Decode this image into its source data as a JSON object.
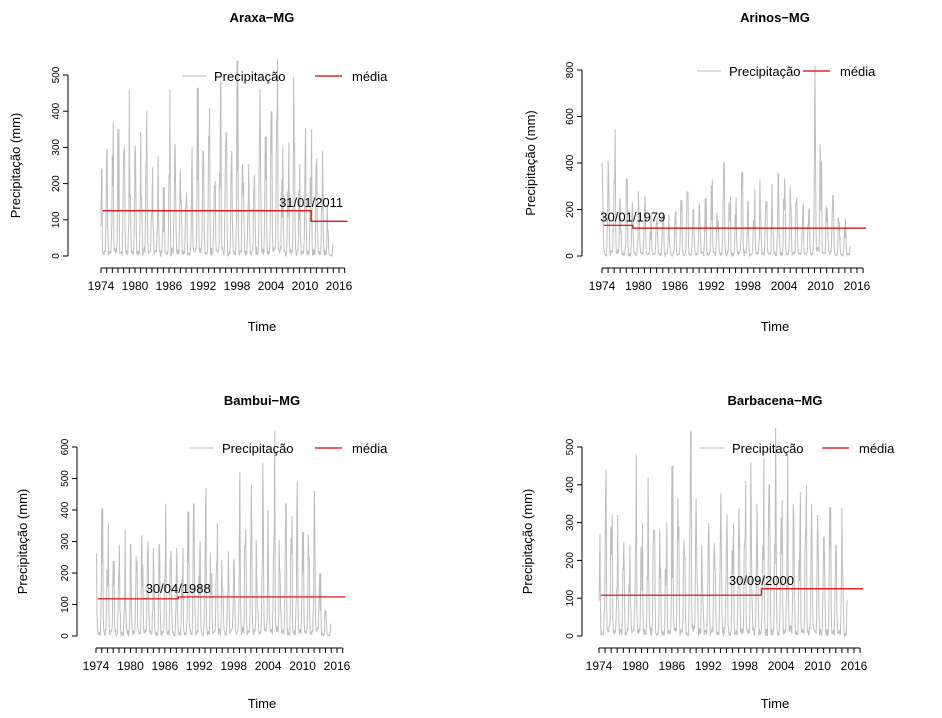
{
  "colors": {
    "series": "#bebebe",
    "mean": "#e00000"
  },
  "chart_data": [
    {
      "type": "line",
      "title": "Araxa−MG",
      "xlabel": "Time",
      "ylabel": "Precipitação (mm)",
      "xlim": [
        1974,
        2017.6
      ],
      "ylim": [
        0,
        500
      ],
      "yticks": [
        0,
        100,
        200,
        300,
        400,
        500
      ],
      "xticks": [
        1974,
        1980,
        1986,
        1992,
        1998,
        2004,
        2010,
        2016
      ],
      "legend": [
        "Precipitação",
        "média"
      ],
      "changepoint": {
        "label": "31/01/2011",
        "x": 2011.08,
        "mean_before": 125,
        "mean_after": 96
      },
      "annual_peaks": [
        240,
        295,
        370,
        350,
        300,
        460,
        305,
        435,
        400,
        280,
        275,
        190,
        460,
        310,
        330,
        200,
        300,
        465,
        290,
        410,
        355,
        480,
        340,
        290,
        540,
        300,
        320,
        520,
        460,
        330,
        400,
        545,
        300,
        315,
        495,
        255,
        370,
        350,
        270,
        290,
        70
      ]
    },
    {
      "type": "line",
      "title": "Arinos−MG",
      "xlabel": "Time",
      "ylabel": "Precipitação (mm)",
      "xlim": [
        1974,
        2017.6
      ],
      "ylim": [
        0,
        800
      ],
      "yticks": [
        0,
        200,
        400,
        600,
        800
      ],
      "xticks": [
        1974,
        1980,
        1986,
        1992,
        1998,
        2004,
        2010,
        2016
      ],
      "legend": [
        "Precipitação",
        "média"
      ],
      "changepoint": {
        "label": "30/01/1979",
        "x": 1979.08,
        "mean_before": 132,
        "mean_after": 120
      },
      "annual_peaks": [
        400,
        410,
        545,
        250,
        330,
        230,
        280,
        260,
        200,
        215,
        225,
        180,
        190,
        240,
        275,
        200,
        310,
        250,
        330,
        235,
        400,
        260,
        330,
        360,
        250,
        290,
        330,
        235,
        310,
        355,
        380,
        340,
        290,
        230,
        320,
        820,
        410,
        370,
        260,
        170,
        160
      ]
    },
    {
      "type": "line",
      "title": "Bambui−MG",
      "xlabel": "Time",
      "ylabel": "Precipitação (mm)",
      "xlim": [
        1974,
        2017.6
      ],
      "ylim": [
        0,
        600
      ],
      "yticks": [
        0,
        100,
        200,
        300,
        400,
        500,
        600
      ],
      "xticks": [
        1974,
        1980,
        1986,
        1992,
        1998,
        2004,
        2010,
        2016
      ],
      "legend": [
        "Precipitação",
        "média"
      ],
      "changepoint": {
        "label": "30/04/1988",
        "x": 1988.33,
        "mean_before": 118,
        "mean_after": 124
      },
      "annual_peaks": [
        260,
        405,
        360,
        390,
        290,
        340,
        290,
        355,
        320,
        300,
        280,
        290,
        420,
        270,
        320,
        280,
        395,
        420,
        300,
        470,
        350,
        555,
        330,
        420,
        310,
        520,
        370,
        480,
        330,
        550,
        400,
        650,
        350,
        420,
        380,
        490,
        330,
        350,
        460,
        200,
        80
      ]
    },
    {
      "type": "line",
      "title": "Barbacena−MG",
      "xlabel": "Time",
      "ylabel": "Precipitação (mm)",
      "xlim": [
        1974,
        2017.6
      ],
      "ylim": [
        0,
        500
      ],
      "yticks": [
        0,
        100,
        200,
        300,
        400,
        500
      ],
      "xticks": [
        1974,
        1980,
        1986,
        1992,
        1998,
        2004,
        2010,
        2016
      ],
      "legend": [
        "Precipitação",
        "média"
      ],
      "changepoint": {
        "label": "30/09/2000",
        "x": 2000.75,
        "mean_before": 108,
        "mean_after": 125
      },
      "annual_peaks": [
        270,
        440,
        320,
        320,
        280,
        310,
        480,
        300,
        420,
        280,
        280,
        300,
        450,
        420,
        470,
        540,
        500,
        310,
        470,
        320,
        410,
        350,
        300,
        340,
        410,
        460,
        350,
        470,
        400,
        550,
        360,
        480,
        350,
        380,
        400,
        350,
        320,
        310,
        340,
        240,
        340
      ]
    }
  ]
}
